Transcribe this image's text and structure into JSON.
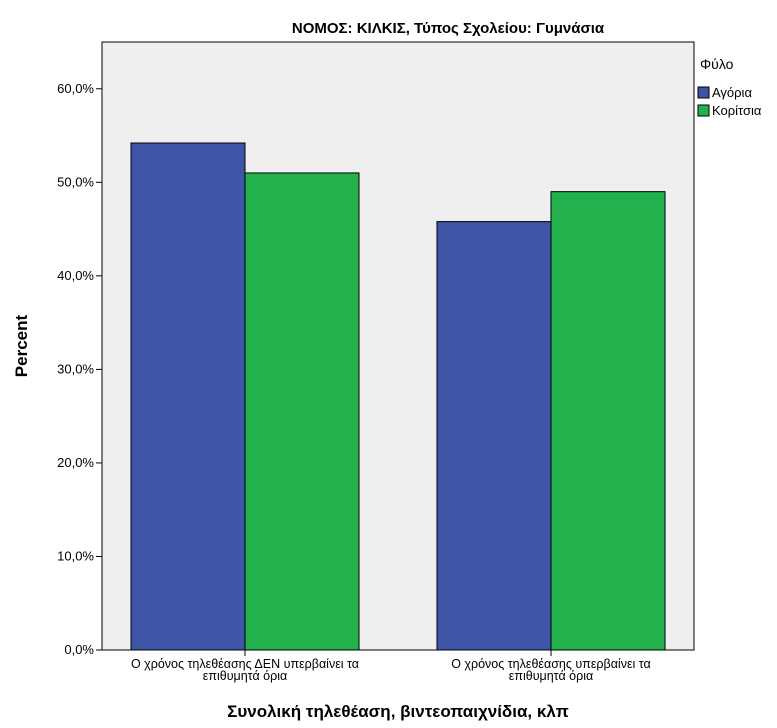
{
  "chart_data": {
    "type": "bar",
    "title": "ΝΟΜΟΣ: ΚΙΛΚΙΣ, Τύπος Σχολείου: Γυμνάσια",
    "xlabel": "Συνολική τηλεθέαση, βιντεοπαιχνίδια, κλπ",
    "ylabel": "Percent",
    "ylim": [
      0,
      65
    ],
    "yticks": [
      0,
      10,
      20,
      30,
      40,
      50,
      60
    ],
    "ytick_labels": [
      "0,0%",
      "10,0%",
      "20,0%",
      "30,0%",
      "40,0%",
      "50,0%",
      "60,0%"
    ],
    "categories": [
      [
        "Ο χρόνος τηλεθέασης ΔΕΝ υπερβαίνει τα",
        "επιθυμητά όρια"
      ],
      [
        "Ο χρόνος τηλεθέασης υπερβαίνει τα",
        "επιθυμητά όρια"
      ]
    ],
    "legend_title": "Φύλο",
    "legend_position": "right",
    "grid": false,
    "plot_background": "#efefef",
    "series": [
      {
        "name": "Αγόρια",
        "color": "#3e54a6",
        "values": [
          54.2,
          45.8
        ]
      },
      {
        "name": "Κορίτσια",
        "color": "#22b14c",
        "values": [
          51.0,
          49.0
        ]
      }
    ]
  }
}
